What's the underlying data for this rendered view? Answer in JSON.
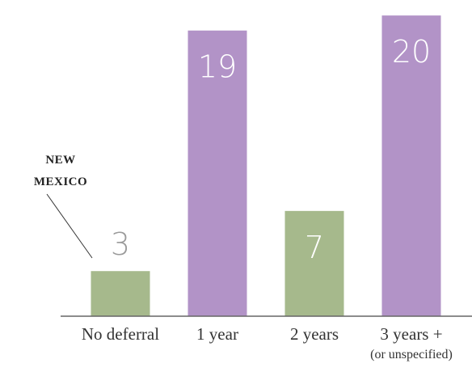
{
  "chart_data": {
    "type": "bar",
    "categories": [
      "No deferral",
      "1 year",
      "2 years",
      "3 years +"
    ],
    "category_notes": [
      "",
      "",
      "",
      "(or unspecified)"
    ],
    "values": [
      3,
      19,
      7,
      20
    ],
    "colors": [
      "#a6b98c",
      "#b293c7",
      "#a6b98c",
      "#b293c7"
    ],
    "value_label_colors": [
      "#9a9a9a",
      "#ffffff",
      "#ffffff",
      "#ffffff"
    ],
    "ylim": [
      0,
      20.6
    ],
    "grid": false,
    "annotation": {
      "lines": [
        "NEW",
        "MEXICO"
      ],
      "target_category": "No deferral"
    }
  }
}
